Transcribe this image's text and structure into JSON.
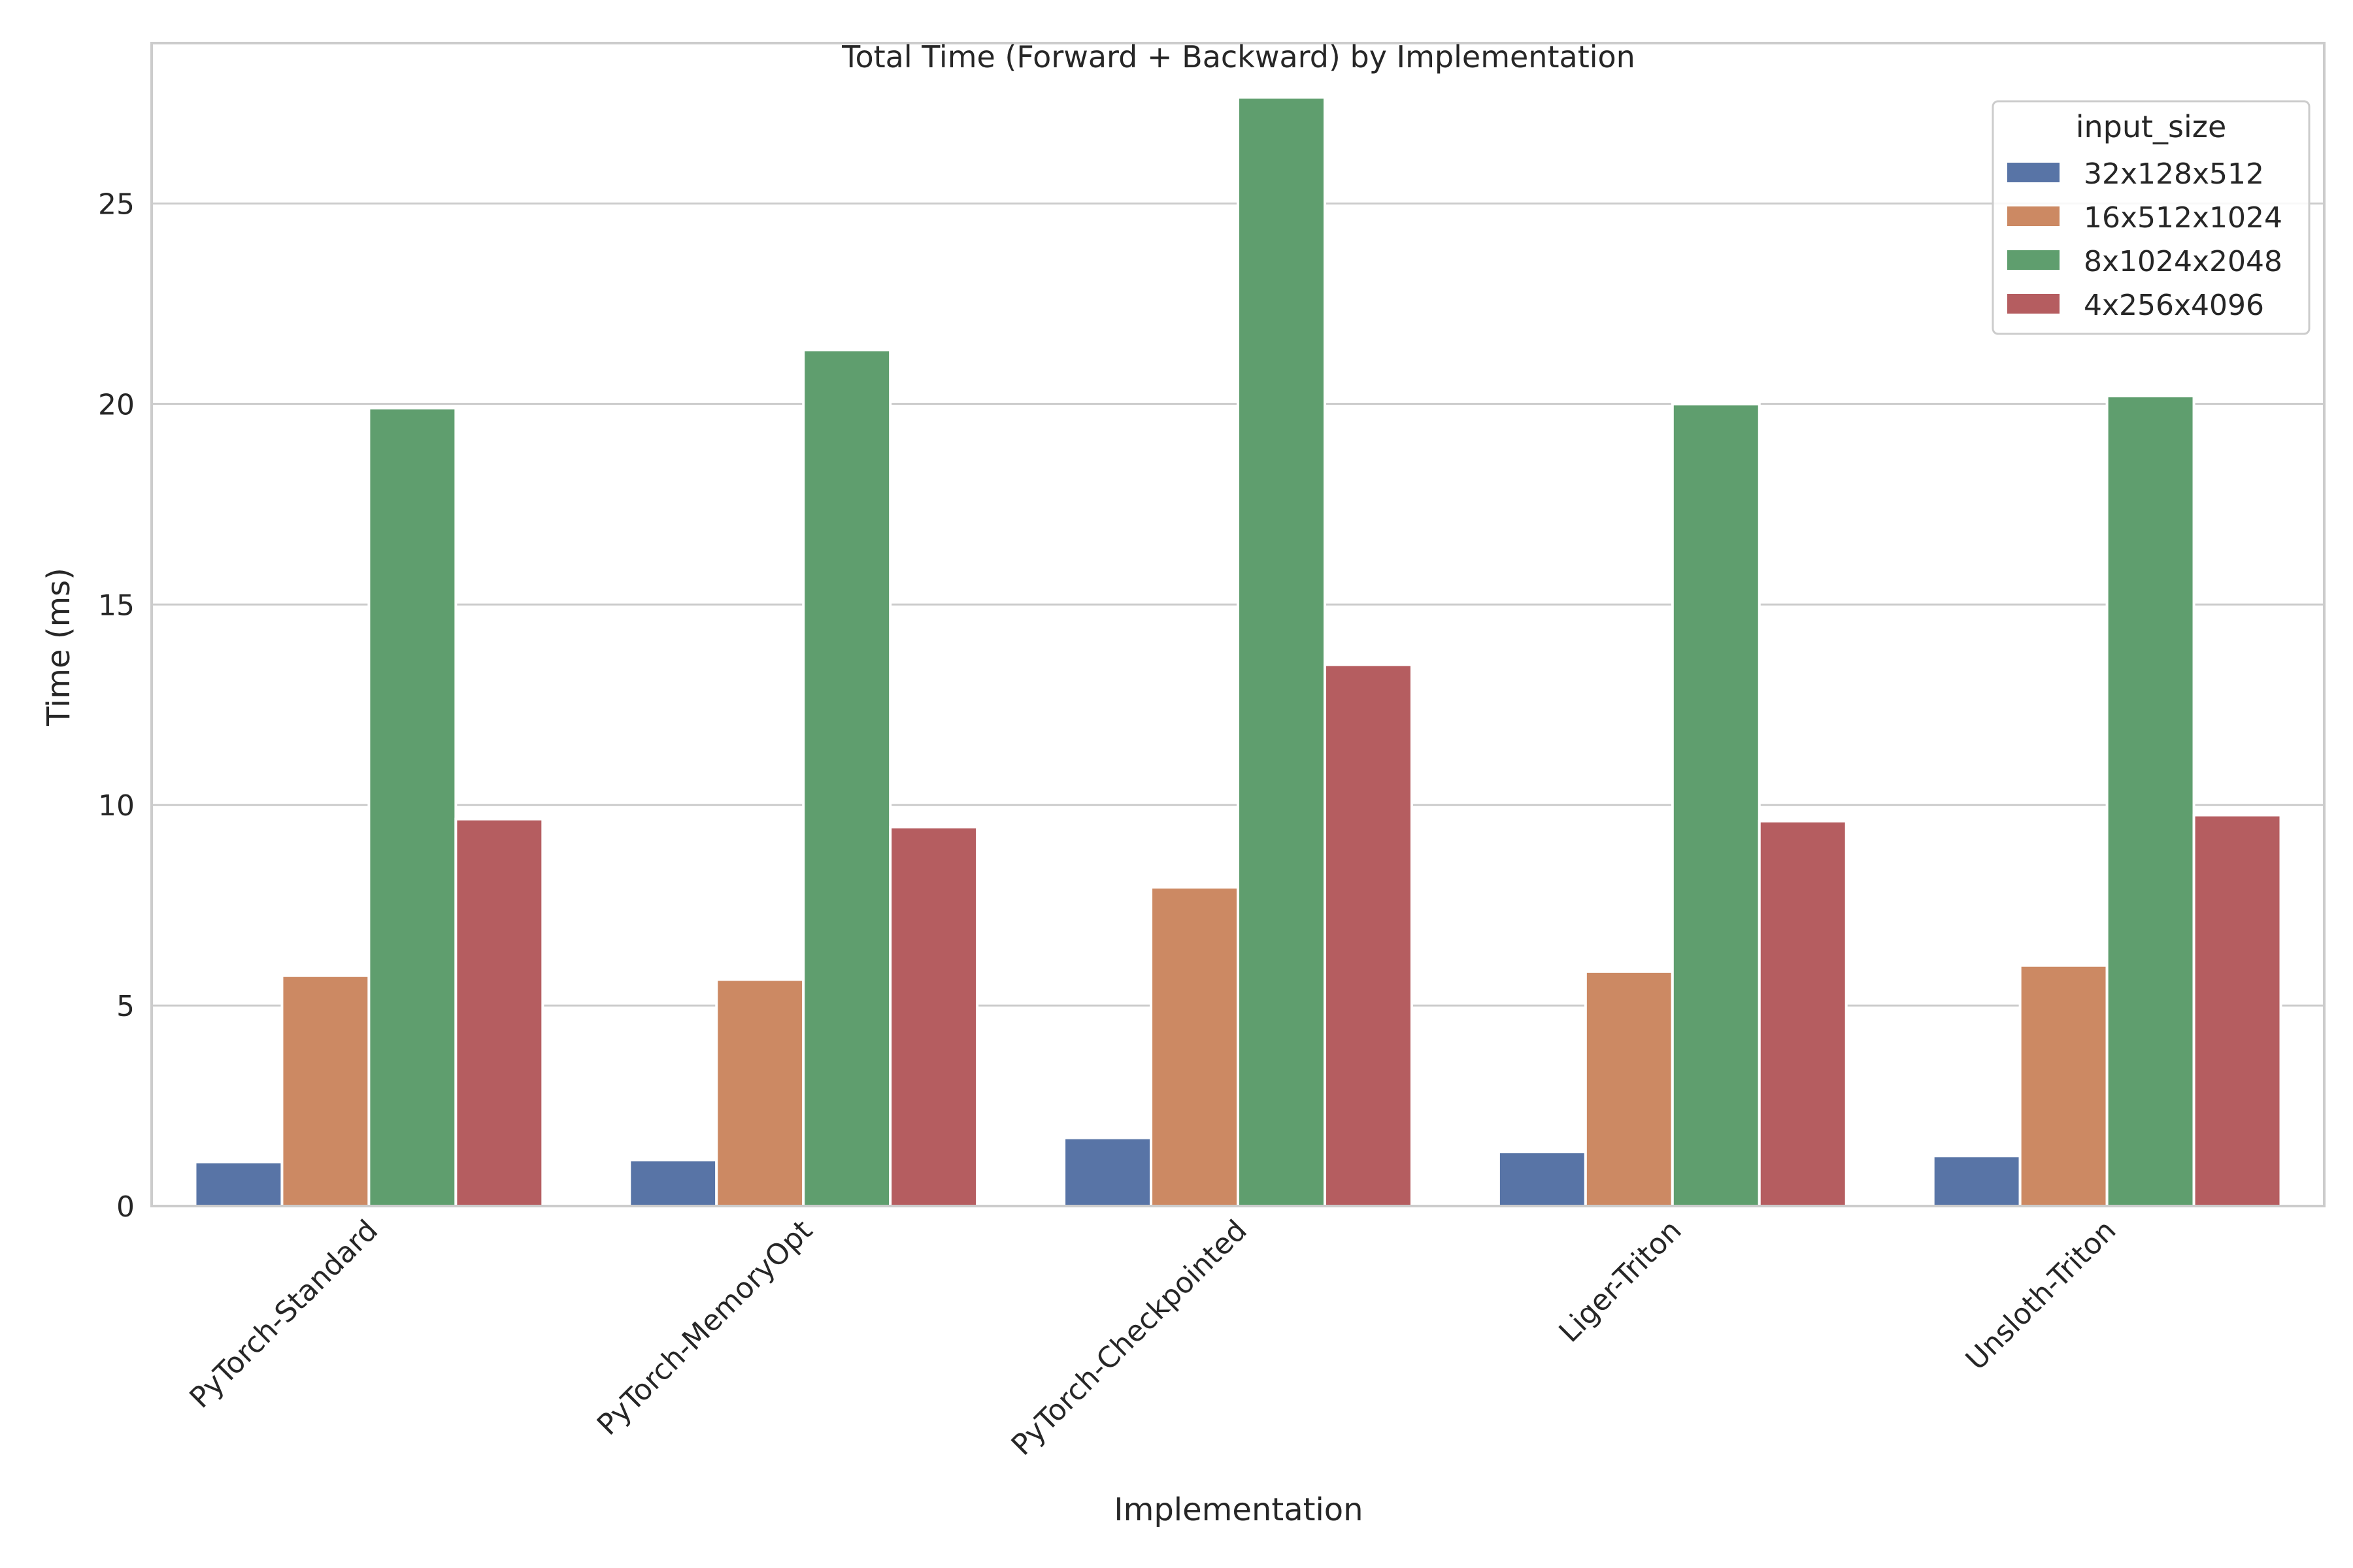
{
  "chart_data": {
    "type": "bar",
    "title": "Total Time (Forward + Backward) by Implementation",
    "xlabel": "Implementation",
    "ylabel": "Time (ms)",
    "ylim": [
      0,
      29
    ],
    "yticks": [
      0,
      5,
      10,
      15,
      20,
      25
    ],
    "grid": "horizontal",
    "legend_title": "input_size",
    "legend_position": "top-right",
    "categories": [
      "PyTorch-Standard",
      "PyTorch-MemoryOpt",
      "PyTorch-Checkpointed",
      "Liger-Triton",
      "Unsloth-Triton"
    ],
    "series": [
      {
        "name": "32x128x512",
        "color": "#5874a6",
        "values": [
          1.1,
          1.15,
          1.7,
          1.35,
          1.25
        ]
      },
      {
        "name": "16x512x1024",
        "color": "#cc8963",
        "values": [
          5.75,
          5.65,
          7.95,
          5.85,
          6.0
        ]
      },
      {
        "name": "8x1024x2048",
        "color": "#5f9e6e",
        "values": [
          19.9,
          21.35,
          27.65,
          20.0,
          20.2
        ]
      },
      {
        "name": "4x256x4096",
        "color": "#b55d60",
        "values": [
          9.65,
          9.45,
          13.5,
          9.6,
          9.75
        ]
      }
    ]
  }
}
